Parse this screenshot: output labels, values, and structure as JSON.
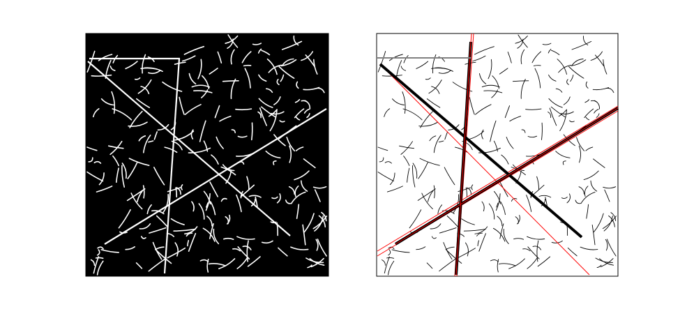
{
  "figure": {
    "background_color": "#ffffff",
    "panels": [
      {
        "id": "left",
        "description_role": "edge-map",
        "background_color": "#000000",
        "stroke_color": "#ffffff",
        "frame_color": "#000000"
      },
      {
        "id": "right",
        "description_role": "detected-lines-overlay",
        "background_color": "#ffffff",
        "stroke_color": "#000000",
        "frame_color": "#000000",
        "highlight_color": "#ff0000",
        "thick_line_color": "#000000",
        "gray_line_color": "#808080"
      }
    ]
  }
}
